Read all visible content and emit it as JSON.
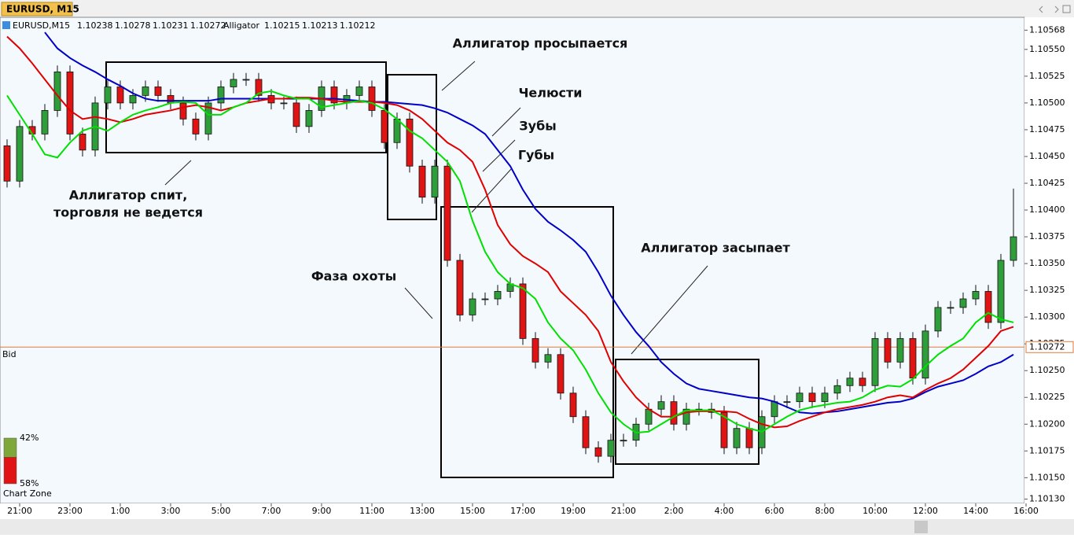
{
  "window": {
    "symbol_tab": "EURUSD, M15"
  },
  "chart_data": {
    "type": "candlestick",
    "title": "EURUSD,M15",
    "quote": [
      1.10238,
      1.10278,
      1.10231,
      1.10272
    ],
    "indicator_name": "Alligator",
    "indicator_values": [
      {
        "value": 1.10215,
        "color": "#00c000"
      },
      {
        "value": 1.10213,
        "color": "#0000c8"
      },
      {
        "value": 1.10212,
        "color": "#e00000"
      }
    ],
    "bid": {
      "label": "Bid",
      "value": 1.10272,
      "color": "#e07a3c"
    },
    "bull_color": "#2f9e3a",
    "bear_color": "#e01414",
    "ylim": [
      1.10126,
      1.1058
    ],
    "yticks": [
      1.10568,
      {
        "value": 1.1055,
        "label": "1.10550"
      },
      1.10525,
      {
        "value": 1.105,
        "label": "1.10500"
      },
      1.10475,
      {
        "value": 1.1045,
        "label": "1.10450"
      },
      1.10425,
      {
        "value": 1.104,
        "label": "1.10400"
      },
      1.10375,
      {
        "value": 1.1035,
        "label": "1.10350"
      },
      1.10325,
      {
        "value": 1.103,
        "label": "1.10300"
      },
      1.10275,
      {
        "value": 1.1025,
        "label": "1.10250"
      },
      1.10225,
      {
        "value": 1.102,
        "label": "1.10200"
      },
      1.10175,
      {
        "value": 1.1015,
        "label": "1.10150"
      },
      {
        "value": 1.1013,
        "label": "1.10130"
      }
    ],
    "categories": [
      null,
      "21:00",
      null,
      null,
      null,
      "23:00",
      null,
      null,
      null,
      "1:00",
      null,
      null,
      null,
      "3:00",
      null,
      null,
      null,
      "5:00",
      null,
      null,
      null,
      "7:00",
      null,
      null,
      null,
      "9:00",
      null,
      null,
      null,
      "11:00",
      null,
      null,
      null,
      "13:00",
      null,
      null,
      null,
      "15:00",
      null,
      null,
      null,
      "17:00",
      null,
      null,
      null,
      "19:00",
      null,
      null,
      null,
      "21:00",
      null,
      null,
      null,
      "2:00",
      null,
      null,
      null,
      "4:00",
      null,
      null,
      null,
      "6:00",
      null,
      null,
      null,
      "8:00",
      null,
      null,
      null,
      "10:00",
      null,
      null,
      null,
      "12:00",
      null,
      null,
      null,
      "14:00",
      null,
      null,
      null,
      "16:00"
    ],
    "ohlc": [
      [
        1.1046,
        1.10466,
        1.10421,
        1.10427
      ],
      [
        1.10427,
        1.10484,
        1.10421,
        1.10478
      ],
      [
        1.10478,
        1.10484,
        1.10465,
        1.10471
      ],
      [
        1.10471,
        1.10499,
        1.10465,
        1.10493
      ],
      [
        1.10493,
        1.10535,
        1.10487,
        1.10529
      ],
      [
        1.10529,
        1.10535,
        1.10465,
        1.10471
      ],
      [
        1.10471,
        1.10477,
        1.1045,
        1.10456
      ],
      [
        1.10456,
        1.10506,
        1.1045,
        1.105
      ],
      [
        1.105,
        1.10521,
        1.10494,
        1.10515
      ],
      [
        1.10515,
        1.10521,
        1.10494,
        1.105
      ],
      [
        1.105,
        1.10513,
        1.10494,
        1.10507
      ],
      [
        1.10507,
        1.10521,
        1.10501,
        1.10515
      ],
      [
        1.10515,
        1.10521,
        1.10501,
        1.10507
      ],
      [
        1.10507,
        1.10513,
        1.10494,
        1.105
      ],
      [
        1.105,
        1.10506,
        1.10479,
        1.10485
      ],
      [
        1.10485,
        1.10491,
        1.10465,
        1.10471
      ],
      [
        1.10471,
        1.10506,
        1.10465,
        1.105
      ],
      [
        1.105,
        1.10521,
        1.10494,
        1.10515
      ],
      [
        1.10515,
        1.10528,
        1.10509,
        1.10522
      ],
      [
        1.10522,
        1.10528,
        1.10516,
        1.10522
      ],
      [
        1.10522,
        1.10528,
        1.10501,
        1.10507
      ],
      [
        1.10507,
        1.10513,
        1.10494,
        1.105
      ],
      [
        1.105,
        1.10506,
        1.10494,
        1.105
      ],
      [
        1.105,
        1.10506,
        1.10472,
        1.10478
      ],
      [
        1.10478,
        1.10499,
        1.10472,
        1.10493
      ],
      [
        1.10493,
        1.10521,
        1.10487,
        1.10515
      ],
      [
        1.10515,
        1.10521,
        1.10494,
        1.105
      ],
      [
        1.105,
        1.10513,
        1.10494,
        1.10507
      ],
      [
        1.10507,
        1.10521,
        1.10501,
        1.10515
      ],
      [
        1.10515,
        1.10521,
        1.10487,
        1.10493
      ],
      [
        1.10493,
        1.10499,
        1.10457,
        1.10463
      ],
      [
        1.10463,
        1.10491,
        1.10457,
        1.10485
      ],
      [
        1.10485,
        1.10491,
        1.10435,
        1.10441
      ],
      [
        1.10441,
        1.10447,
        1.10406,
        1.10412
      ],
      [
        1.10412,
        1.10447,
        1.10406,
        1.10441
      ],
      [
        1.10441,
        1.10447,
        1.10347,
        1.10353
      ],
      [
        1.10353,
        1.10359,
        1.10296,
        1.10302
      ],
      [
        1.10302,
        1.10323,
        1.10296,
        1.10317
      ],
      [
        1.10317,
        1.10323,
        1.10311,
        1.10317
      ],
      [
        1.10317,
        1.1033,
        1.10311,
        1.10324
      ],
      [
        1.10324,
        1.10337,
        1.10318,
        1.10331
      ],
      [
        1.10331,
        1.10337,
        1.10274,
        1.1028
      ],
      [
        1.1028,
        1.10286,
        1.10252,
        1.10258
      ],
      [
        1.10258,
        1.10271,
        1.10252,
        1.10265
      ],
      [
        1.10265,
        1.10271,
        1.10223,
        1.10229
      ],
      [
        1.10229,
        1.10235,
        1.10201,
        1.10207
      ],
      [
        1.10207,
        1.10213,
        1.10172,
        1.10178
      ],
      [
        1.10178,
        1.10184,
        1.10164,
        1.1017
      ],
      [
        1.1017,
        1.10191,
        1.10164,
        1.10185
      ],
      [
        1.10185,
        1.10191,
        1.10179,
        1.10185
      ],
      [
        1.10185,
        1.10206,
        1.10179,
        1.102
      ],
      [
        1.102,
        1.1022,
        1.10194,
        1.10214
      ],
      [
        1.10214,
        1.10227,
        1.10208,
        1.10221
      ],
      [
        1.10221,
        1.10227,
        1.10194,
        1.102
      ],
      [
        1.102,
        1.1022,
        1.10194,
        1.10214
      ],
      [
        1.10214,
        1.1022,
        1.10208,
        1.10214
      ],
      [
        1.10214,
        1.1022,
        1.10205,
        1.10211
      ],
      [
        1.10211,
        1.10217,
        1.10172,
        1.10178
      ],
      [
        1.10178,
        1.10202,
        1.10172,
        1.10196
      ],
      [
        1.10196,
        1.10202,
        1.10172,
        1.10178
      ],
      [
        1.10178,
        1.10213,
        1.10172,
        1.10207
      ],
      [
        1.10207,
        1.10227,
        1.10201,
        1.10221
      ],
      [
        1.10221,
        1.10227,
        1.10215,
        1.10221
      ],
      [
        1.10221,
        1.10235,
        1.10215,
        1.10229
      ],
      [
        1.10229,
        1.10235,
        1.10215,
        1.10221
      ],
      [
        1.10221,
        1.10235,
        1.10215,
        1.10229
      ],
      [
        1.10229,
        1.10242,
        1.10223,
        1.10236
      ],
      [
        1.10236,
        1.10249,
        1.1023,
        1.10243
      ],
      [
        1.10243,
        1.10249,
        1.1023,
        1.10236
      ],
      [
        1.10236,
        1.10286,
        1.1023,
        1.1028
      ],
      [
        1.1028,
        1.10286,
        1.10252,
        1.10258
      ],
      [
        1.10258,
        1.10286,
        1.10252,
        1.1028
      ],
      [
        1.1028,
        1.10286,
        1.10237,
        1.10243
      ],
      [
        1.10243,
        1.10293,
        1.10237,
        1.10287
      ],
      [
        1.10287,
        1.10315,
        1.10281,
        1.10309
      ],
      [
        1.10309,
        1.10315,
        1.10303,
        1.10309
      ],
      [
        1.10309,
        1.10323,
        1.10303,
        1.10317
      ],
      [
        1.10317,
        1.1033,
        1.10311,
        1.10324
      ],
      [
        1.10324,
        1.1033,
        1.10289,
        1.10295
      ],
      [
        1.10295,
        1.10359,
        1.10289,
        1.10353
      ],
      [
        1.10353,
        1.1042,
        1.10347,
        1.10375
      ],
      null
    ],
    "series": [
      {
        "name": "Челюсти",
        "color": "#0000c8",
        "values": [
          null,
          null,
          null,
          1.10566,
          1.10551,
          1.10542,
          1.10535,
          1.10529,
          1.10522,
          1.10516,
          1.10509,
          1.10504,
          1.10502,
          1.10502,
          1.10502,
          1.10502,
          1.10502,
          1.10504,
          1.10504,
          1.10504,
          1.10504,
          1.10504,
          1.10504,
          1.10504,
          1.10504,
          1.10504,
          1.10504,
          1.10503,
          1.10502,
          1.10501,
          1.10501,
          1.105,
          1.10499,
          1.10498,
          1.10495,
          1.10491,
          1.10485,
          1.10479,
          1.10471,
          1.10456,
          1.10441,
          1.10419,
          1.10401,
          1.10389,
          1.10381,
          1.10372,
          1.10361,
          1.10342,
          1.1032,
          1.10302,
          1.10286,
          1.10273,
          1.10258,
          1.10247,
          1.10238,
          1.10233,
          1.10231,
          1.10229,
          1.10227,
          1.10225,
          1.10224,
          1.10221,
          1.10216,
          1.10211,
          1.1021,
          1.10211,
          1.10212,
          1.10214,
          1.10216,
          1.10218,
          1.1022,
          1.10221,
          1.10224,
          1.1023,
          1.10235,
          1.10238,
          1.10241,
          1.10247,
          1.10254,
          1.10258,
          1.10265,
          null
        ]
      },
      {
        "name": "Зубы",
        "color": "#e00000",
        "values": [
          1.10562,
          1.10551,
          1.10537,
          1.10522,
          1.10507,
          1.10493,
          1.10485,
          1.10487,
          1.10485,
          1.10482,
          1.10485,
          1.10489,
          1.10491,
          1.10493,
          1.10496,
          1.10498,
          1.10496,
          1.10493,
          1.10496,
          1.105,
          1.10502,
          1.10504,
          1.10504,
          1.10505,
          1.10505,
          1.10504,
          1.10502,
          1.10501,
          1.10501,
          1.10501,
          1.105,
          1.10498,
          1.10493,
          1.10485,
          1.10474,
          1.10463,
          1.10456,
          1.10445,
          1.10419,
          1.10386,
          1.10368,
          1.10357,
          1.1035,
          1.10342,
          1.10324,
          1.10313,
          1.10302,
          1.10287,
          1.10258,
          1.1024,
          1.10225,
          1.10214,
          1.10207,
          1.10207,
          1.10211,
          1.10212,
          1.10212,
          1.10212,
          1.10211,
          1.10205,
          1.102,
          1.10197,
          1.10198,
          1.10203,
          1.10207,
          1.10211,
          1.10214,
          1.10216,
          1.10218,
          1.10221,
          1.10225,
          1.10227,
          1.10225,
          1.10232,
          1.10238,
          1.10243,
          1.10251,
          1.10262,
          1.10273,
          1.10287,
          1.10291,
          null
        ]
      },
      {
        "name": "Губы",
        "color": "#00e000",
        "values": [
          1.10507,
          1.10489,
          1.10471,
          1.10452,
          1.10449,
          1.10463,
          1.10474,
          1.10478,
          1.10474,
          1.10482,
          1.10489,
          1.10493,
          1.10496,
          1.105,
          1.10501,
          1.105,
          1.10489,
          1.10489,
          1.10496,
          1.105,
          1.10509,
          1.10511,
          1.10507,
          1.10504,
          1.10504,
          1.10496,
          1.10498,
          1.105,
          1.10502,
          1.105,
          1.10494,
          1.10485,
          1.10474,
          1.10467,
          1.10456,
          1.10445,
          1.10427,
          1.1039,
          1.10361,
          1.10342,
          1.10331,
          1.10327,
          1.10317,
          1.10295,
          1.1028,
          1.10269,
          1.10251,
          1.10229,
          1.10211,
          1.102,
          1.10192,
          1.10193,
          1.102,
          1.10207,
          1.10213,
          1.10213,
          1.10213,
          1.10207,
          1.102,
          1.10196,
          1.10193,
          1.102,
          1.10207,
          1.10213,
          1.10216,
          1.10218,
          1.1022,
          1.10221,
          1.10225,
          1.10232,
          1.10236,
          1.10235,
          1.10242,
          1.10254,
          1.10265,
          1.10273,
          1.1028,
          1.10295,
          1.10304,
          1.10298,
          1.10295,
          null
        ]
      }
    ],
    "annotations": [
      "Аллигатор просыпается",
      "Аллигатор спит,",
      "торговля не ведется",
      "Фаза охоты",
      "Аллигатор засыпает"
    ],
    "chart_zone": {
      "title": "Chart Zone",
      "values": [
        42,
        58
      ],
      "value_labels": [
        "42%",
        "58%"
      ],
      "colors": [
        "#7fa83a",
        "#e01414"
      ]
    }
  }
}
